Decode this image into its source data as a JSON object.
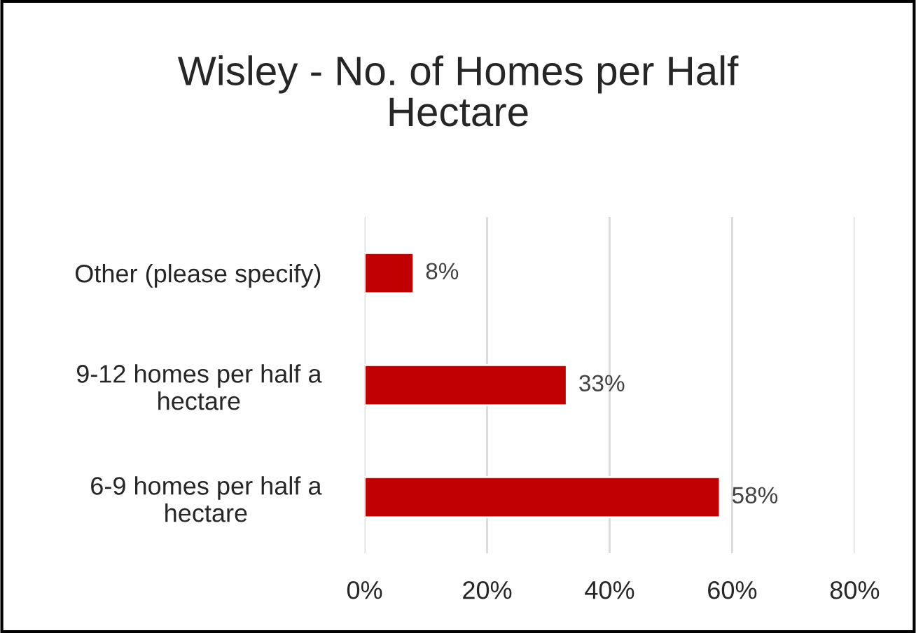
{
  "chart_data": {
    "type": "bar",
    "orientation": "horizontal",
    "title": "Wisley - No. of Homes per Half Hectare",
    "categories": [
      "Other (please specify)",
      "9-12 homes per half a hectare",
      "6-9 homes per half a hectare"
    ],
    "values": [
      8,
      33,
      58
    ],
    "value_labels": [
      "8%",
      "33%",
      "58%"
    ],
    "color": "#c00000",
    "xlim": [
      0,
      80
    ],
    "xticks": [
      {
        "value": 0,
        "label": "0%"
      },
      {
        "value": 20,
        "label": "20%"
      },
      {
        "value": 40,
        "label": "40%"
      },
      {
        "value": 60,
        "label": "60%"
      },
      {
        "value": 80,
        "label": "80%"
      }
    ],
    "grid": "x",
    "legend": false
  }
}
